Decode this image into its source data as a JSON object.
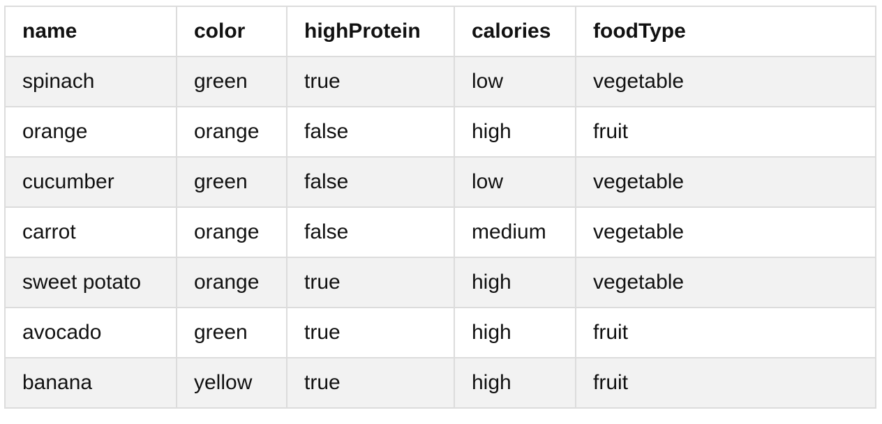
{
  "table": {
    "columns": [
      "name",
      "color",
      "highProtein",
      "calories",
      "foodType"
    ],
    "rows": [
      [
        "spinach",
        "green",
        "true",
        "low",
        "vegetable"
      ],
      [
        "orange",
        "orange",
        "false",
        "high",
        "fruit"
      ],
      [
        "cucumber",
        "green",
        "false",
        "low",
        "vegetable"
      ],
      [
        "carrot",
        "orange",
        "false",
        "medium",
        "vegetable"
      ],
      [
        "sweet potato",
        "orange",
        "true",
        "high",
        "vegetable"
      ],
      [
        "avocado",
        "green",
        "true",
        "high",
        "fruit"
      ],
      [
        "banana",
        "yellow",
        "true",
        "high",
        "fruit"
      ]
    ]
  }
}
